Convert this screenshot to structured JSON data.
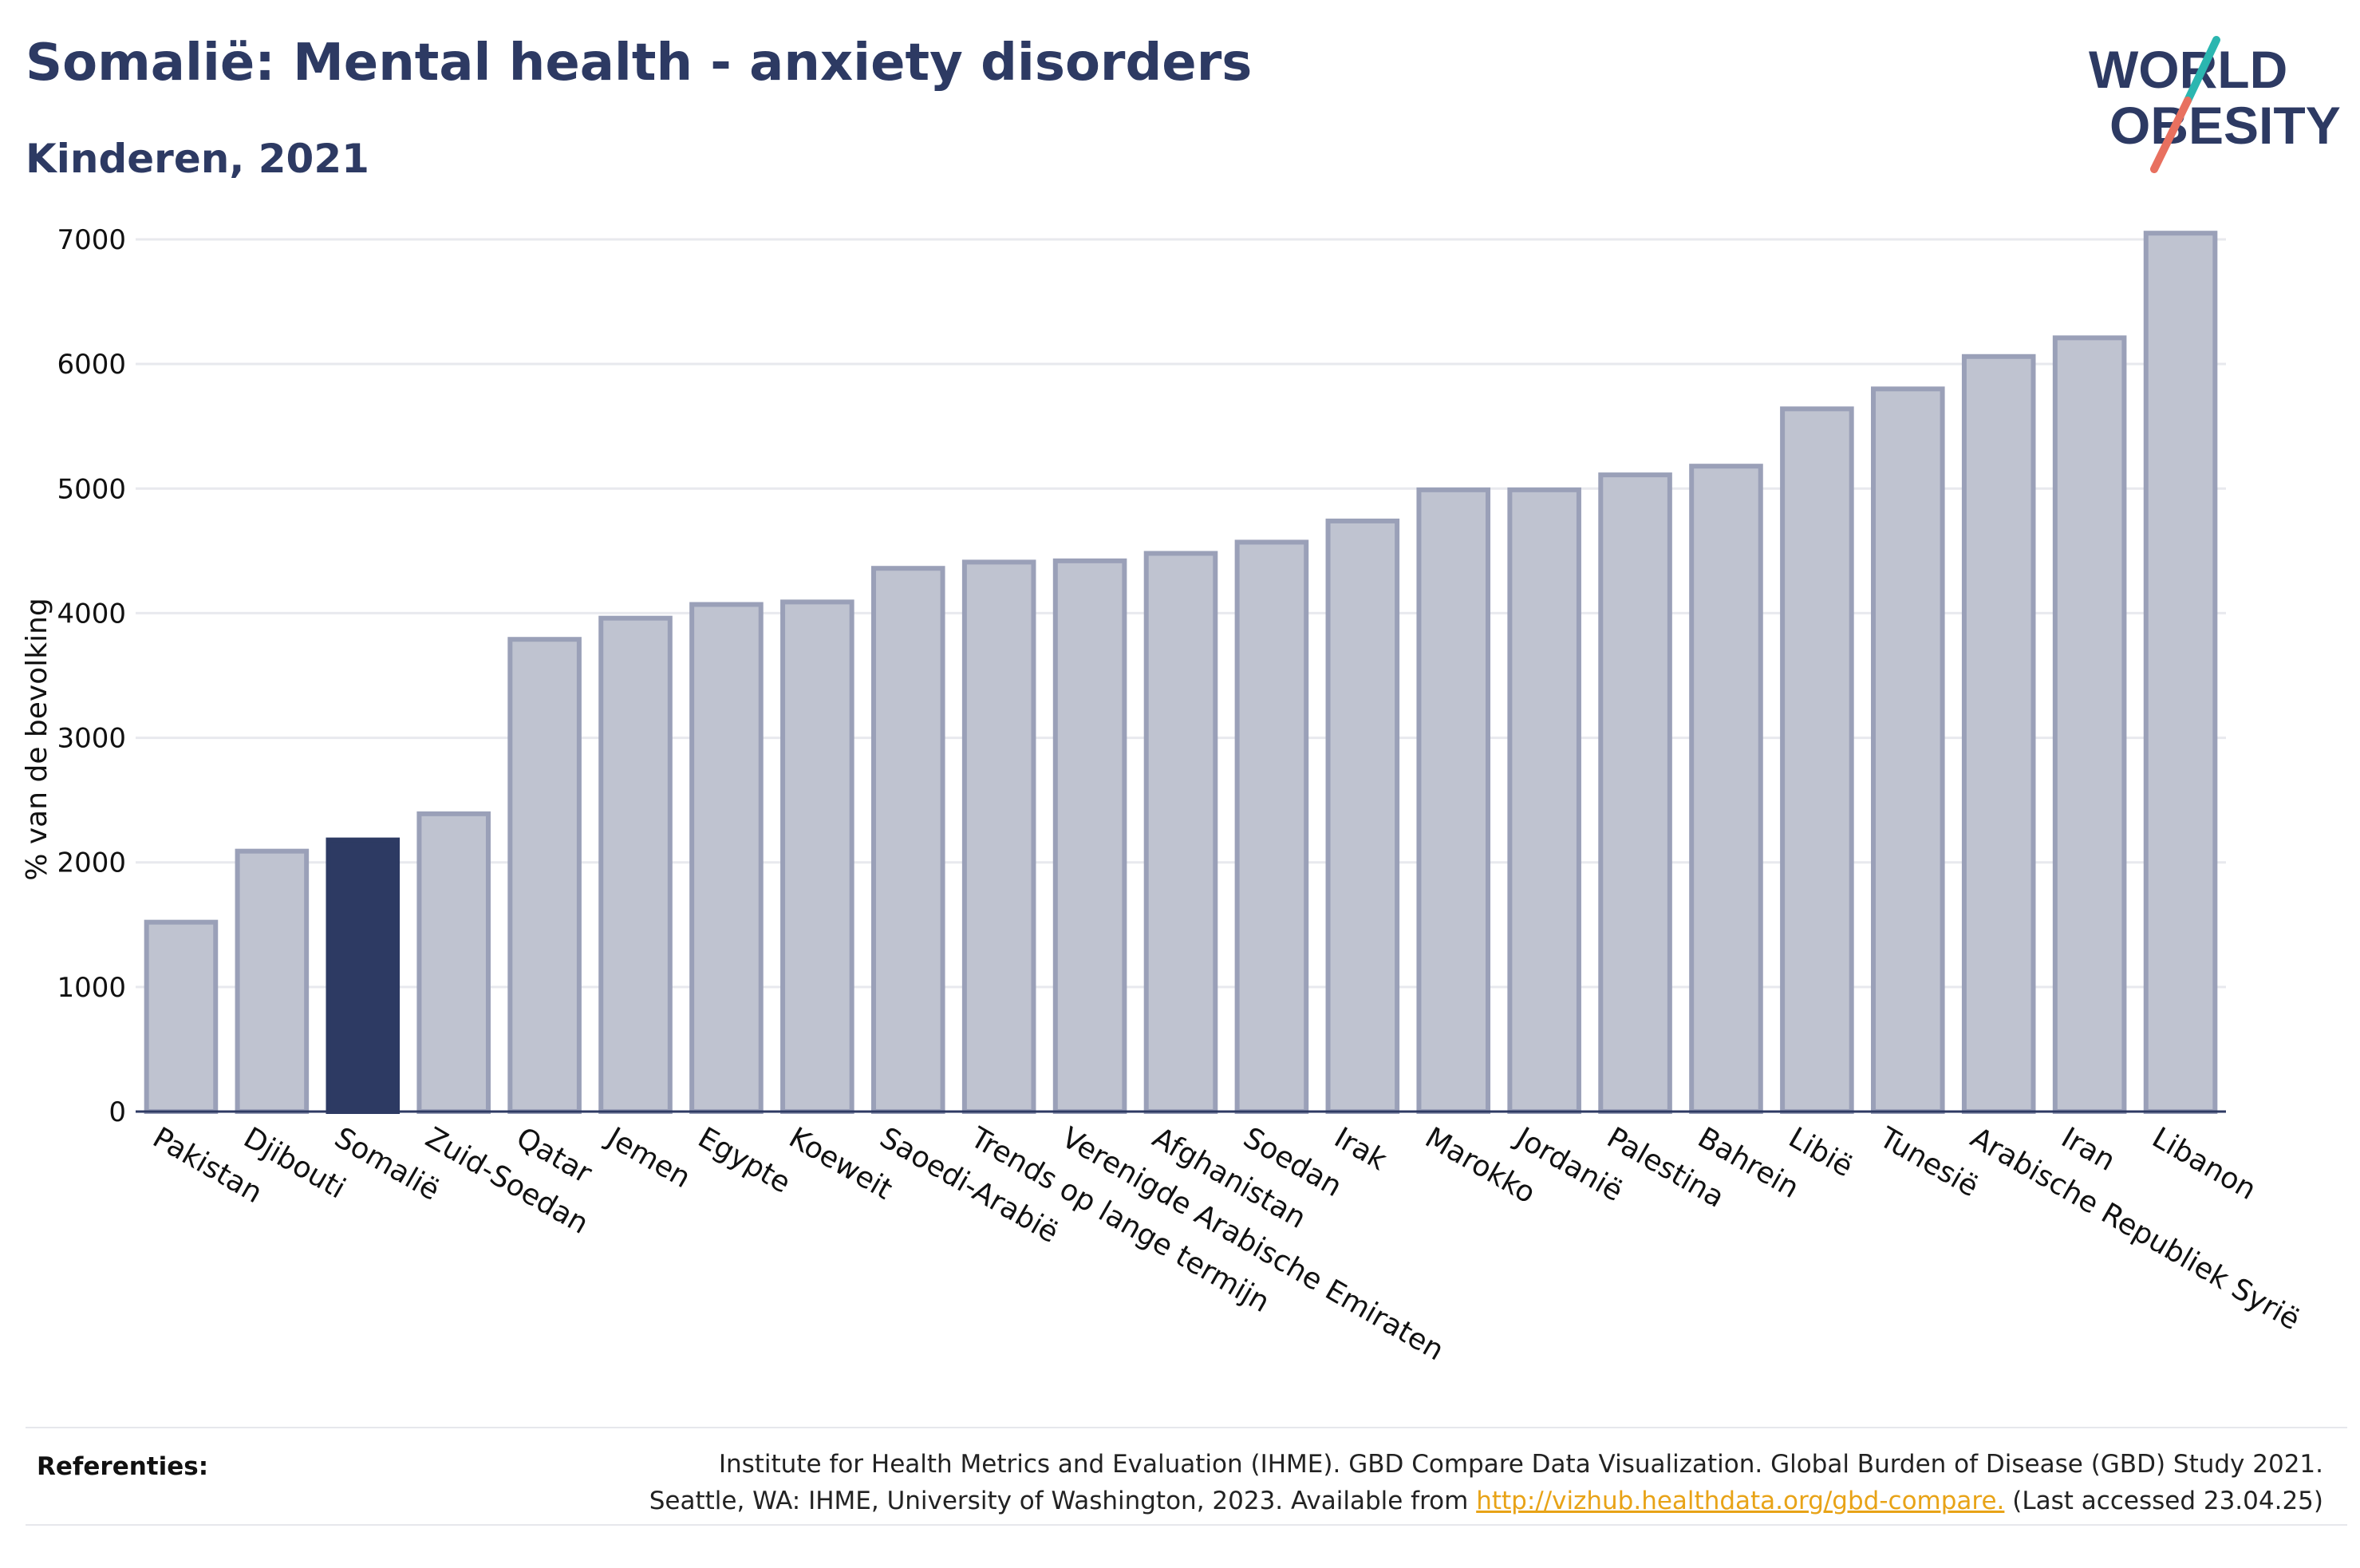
{
  "header": {
    "title": "Somalië: Mental health - anxiety disorders",
    "subtitle": "Kinderen, 2021"
  },
  "logo": {
    "line1": "WORLD",
    "line2": "OBESITY",
    "colors": {
      "text": "#2d3a63",
      "slash_top": "#2bb6b0",
      "slash_bottom": "#e8705f"
    }
  },
  "colors": {
    "bar": "#bfc3d0",
    "bar_stroke": "#9aa0b8",
    "highlight": "#2d3a63",
    "grid": "#e8e9ee",
    "axis": "#2d3a63",
    "link": "#e8a317"
  },
  "chart_data": {
    "type": "bar",
    "ylabel": "% van de bevolking",
    "xlabel": "",
    "ylim": [
      0,
      7000
    ],
    "yticks": [
      0,
      1000,
      2000,
      3000,
      4000,
      5000,
      6000,
      7000
    ],
    "grid": true,
    "highlight_category": "Somalië",
    "categories": [
      "Pakistan",
      "Djibouti",
      "Somalië",
      "Zuid-Soedan",
      "Qatar",
      "Jemen",
      "Egypte",
      "Koeweit",
      "Saoedi-Arabië",
      "Trends op lange termijn",
      "Verenigde Arabische Emiraten",
      "Afghanistan",
      "Soedan",
      "Irak",
      "Marokko",
      "Jordanië",
      "Palestina",
      "Bahrein",
      "Libië",
      "Tunesië",
      "Arabische Republiek Syrië",
      "Iran",
      "Libanon"
    ],
    "values": [
      1520,
      2090,
      2180,
      2390,
      3790,
      3960,
      4070,
      4090,
      4360,
      4410,
      4420,
      4480,
      4570,
      4740,
      4990,
      4990,
      5110,
      5180,
      5640,
      5800,
      6060,
      6210,
      7050
    ]
  },
  "references": {
    "label": "Referenties:",
    "line1": "Institute for Health Metrics and Evaluation (IHME). GBD Compare Data Visualization. Global Burden of Disease (GBD) Study 2021.",
    "line2_prefix": "Seattle, WA: IHME, University of Washington, 2023. Available from ",
    "link": "http://vizhub.healthdata.org/gbd-compare.",
    "line2_suffix": " (Last accessed 23.04.25)"
  }
}
